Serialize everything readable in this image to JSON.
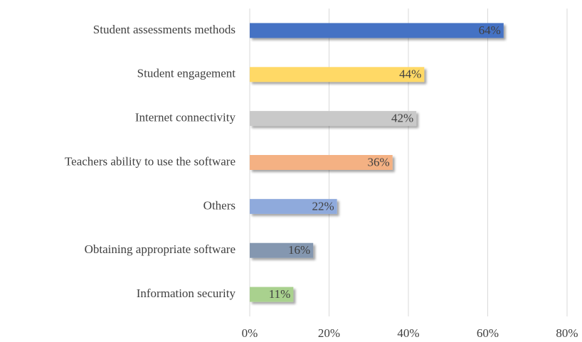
{
  "chart_data": {
    "type": "bar",
    "orientation": "horizontal",
    "categories": [
      "Student assessments methods",
      "Student engagement",
      "Internet connectivity",
      "Teachers ability to use the software",
      "Others",
      "Obtaining appropriate software",
      "Information security"
    ],
    "values": [
      64,
      44,
      42,
      36,
      22,
      16,
      11
    ],
    "value_labels": [
      "64%",
      "44%",
      "42%",
      "36%",
      "22%",
      "16%",
      "11%"
    ],
    "colors": [
      "#4472c4",
      "#ffd966",
      "#c9c9c9",
      "#f4b183",
      "#8faadc",
      "#8497b0",
      "#a9d18e"
    ],
    "xlim": [
      0,
      80
    ],
    "xticks": [
      {
        "value": 0,
        "label": "0%"
      },
      {
        "value": 20,
        "label": "20%"
      },
      {
        "value": 40,
        "label": "40%"
      },
      {
        "value": 60,
        "label": "60%"
      },
      {
        "value": 80,
        "label": "80%"
      }
    ],
    "grid": true
  }
}
